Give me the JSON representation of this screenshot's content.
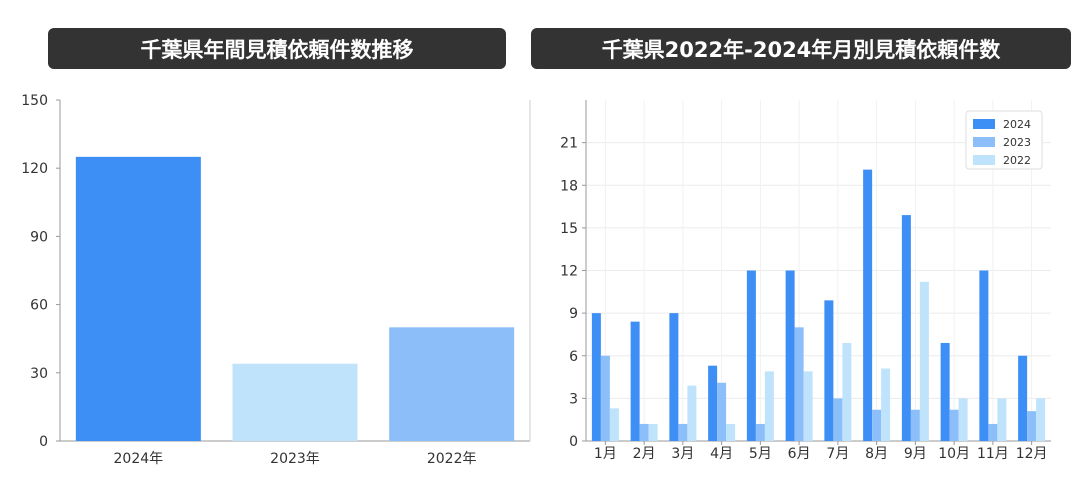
{
  "chart_data": [
    {
      "type": "bar",
      "title": "千葉県年間見積依頼件数推移",
      "categories": [
        "2024年",
        "2023年",
        "2022年"
      ],
      "values": [
        125,
        34,
        50
      ],
      "colors": [
        "#3d8ef5",
        "#bfe3fb",
        "#8cbffa"
      ],
      "ylim": [
        0,
        150
      ],
      "yticks": [
        "0",
        "30",
        "60",
        "90",
        "120",
        "150"
      ],
      "grid": false
    },
    {
      "type": "bar",
      "title": "千葉県2022年-2024年月別見積依頼件数",
      "categories": [
        "1月",
        "2月",
        "3月",
        "4月",
        "5月",
        "6月",
        "7月",
        "8月",
        "9月",
        "10月",
        "11月",
        "12月"
      ],
      "series": [
        {
          "name": "2024",
          "color": "#3d8ef5",
          "values": [
            9,
            8.4,
            9,
            5.3,
            12,
            12,
            9.9,
            19.1,
            15.9,
            6.9,
            12,
            6
          ]
        },
        {
          "name": "2023",
          "color": "#8cbffa",
          "values": [
            6,
            1.2,
            1.2,
            4.1,
            1.2,
            8,
            3,
            2.2,
            2.2,
            2.2,
            1.2,
            2.1
          ]
        },
        {
          "name": "2022",
          "color": "#bfe3fb",
          "values": [
            2.3,
            1.2,
            3.9,
            1.2,
            4.9,
            4.9,
            6.9,
            5.1,
            11.2,
            3,
            3,
            3
          ]
        }
      ],
      "ylim": [
        0,
        24
      ],
      "yticks": [
        "0",
        "3",
        "6",
        "9",
        "12",
        "15",
        "18",
        "21"
      ],
      "grid": true,
      "legend_position": "top-right"
    }
  ]
}
